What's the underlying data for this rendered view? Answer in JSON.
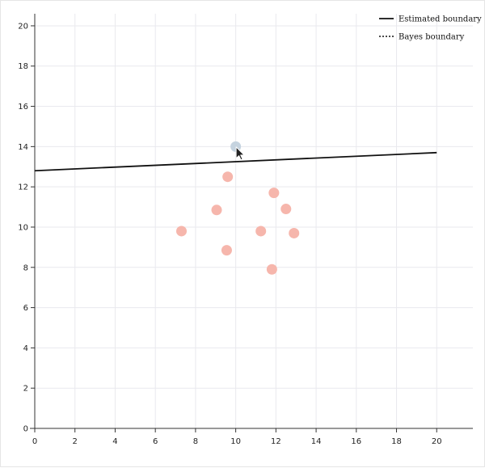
{
  "chart_data": {
    "type": "scatter",
    "title": "",
    "xlabel": "",
    "ylabel": "",
    "xlim": [
      0,
      21.8
    ],
    "ylim": [
      0,
      20.6
    ],
    "x_ticks": [
      "0",
      "2",
      "4",
      "6",
      "8",
      "10",
      "12",
      "14",
      "16",
      "18",
      "20"
    ],
    "y_ticks": [
      "0",
      "2",
      "4",
      "6",
      "8",
      "10",
      "12",
      "14",
      "16",
      "18",
      "20"
    ],
    "grid": true,
    "legend_position": "top-right",
    "legend": [
      {
        "label": "Estimated boundary",
        "style": "solid"
      },
      {
        "label": "Bayes boundary",
        "style": "dotted"
      }
    ],
    "series": [
      {
        "class": "red",
        "color": "#f6b6ac",
        "points": [
          {
            "x": 9.6,
            "y": 12.5
          },
          {
            "x": 11.9,
            "y": 11.7
          },
          {
            "x": 9.05,
            "y": 10.85
          },
          {
            "x": 12.5,
            "y": 10.9
          },
          {
            "x": 7.3,
            "y": 9.8
          },
          {
            "x": 11.25,
            "y": 9.8
          },
          {
            "x": 12.9,
            "y": 9.7
          },
          {
            "x": 9.55,
            "y": 8.85
          },
          {
            "x": 11.8,
            "y": 7.9
          }
        ]
      },
      {
        "class": "blue",
        "color": "#c5d3df",
        "points": [
          {
            "x": 10.0,
            "y": 14.0
          }
        ]
      }
    ],
    "lines": [
      {
        "label": "Estimated boundary",
        "style": "solid",
        "color": "#111111",
        "points": [
          {
            "x": 0,
            "y": 12.8
          },
          {
            "x": 20,
            "y": 13.7
          }
        ]
      }
    ]
  },
  "overlay": {
    "cursor": "arrow-cursor",
    "cursor_at": {
      "x": 10.0,
      "y": 14.0
    }
  }
}
